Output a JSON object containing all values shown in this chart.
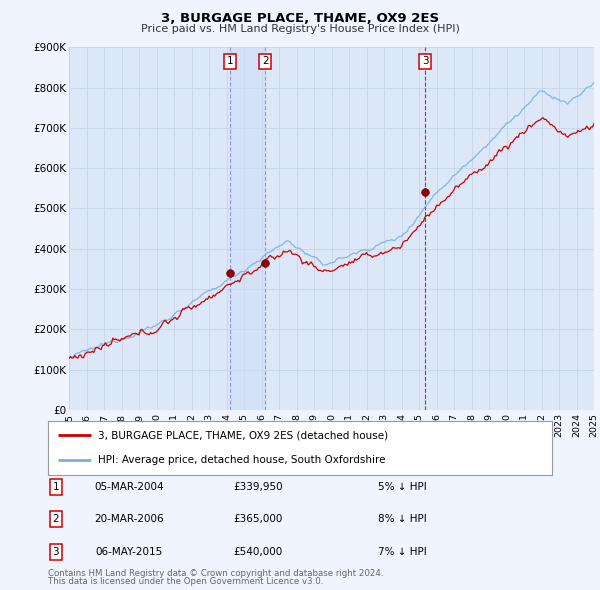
{
  "title": "3, BURGAGE PLACE, THAME, OX9 2ES",
  "subtitle": "Price paid vs. HM Land Registry's House Price Index (HPI)",
  "background_color": "#f0f4ff",
  "plot_bg_color": "#dce8f8",
  "hpi_line_color": "#7ab0e0",
  "price_line_color": "#cc0000",
  "marker_color": "#990000",
  "xmin": 1995,
  "xmax": 2025,
  "ymin": 0,
  "ymax": 900000,
  "yticks": [
    0,
    100000,
    200000,
    300000,
    400000,
    500000,
    600000,
    700000,
    800000,
    900000
  ],
  "ytick_labels": [
    "£0",
    "£100K",
    "£200K",
    "£300K",
    "£400K",
    "£500K",
    "£600K",
    "£700K",
    "£800K",
    "£900K"
  ],
  "xticks": [
    1995,
    1996,
    1997,
    1998,
    1999,
    2000,
    2001,
    2002,
    2003,
    2004,
    2005,
    2006,
    2007,
    2008,
    2009,
    2010,
    2011,
    2012,
    2013,
    2014,
    2015,
    2016,
    2017,
    2018,
    2019,
    2020,
    2021,
    2022,
    2023,
    2024,
    2025
  ],
  "purchases": [
    {
      "label": "1",
      "date_str": "05-MAR-2004",
      "year": 2004.18,
      "price": 339950,
      "pct": "5%",
      "direction": "↓"
    },
    {
      "label": "2",
      "date_str": "20-MAR-2006",
      "year": 2006.22,
      "price": 365000,
      "pct": "8%",
      "direction": "↓"
    },
    {
      "label": "3",
      "date_str": "06-MAY-2015",
      "year": 2015.35,
      "price": 540000,
      "pct": "7%",
      "direction": "↓"
    }
  ],
  "legend_line1": "3, BURGAGE PLACE, THAME, OX9 2ES (detached house)",
  "legend_line2": "HPI: Average price, detached house, South Oxfordshire",
  "footer_line1": "Contains HM Land Registry data © Crown copyright and database right 2024.",
  "footer_line2": "This data is licensed under the Open Government Licence v3.0.",
  "grid_color": "#c8d8ec",
  "vline_color": "#cc0000",
  "vline1_color": "#8888cc",
  "table_rows": [
    [
      "1",
      "05-MAR-2004",
      "£339,950",
      "5% ↓ HPI"
    ],
    [
      "2",
      "20-MAR-2006",
      "£365,000",
      "8% ↓ HPI"
    ],
    [
      "3",
      "06-MAY-2015",
      "£540,000",
      "7% ↓ HPI"
    ]
  ]
}
